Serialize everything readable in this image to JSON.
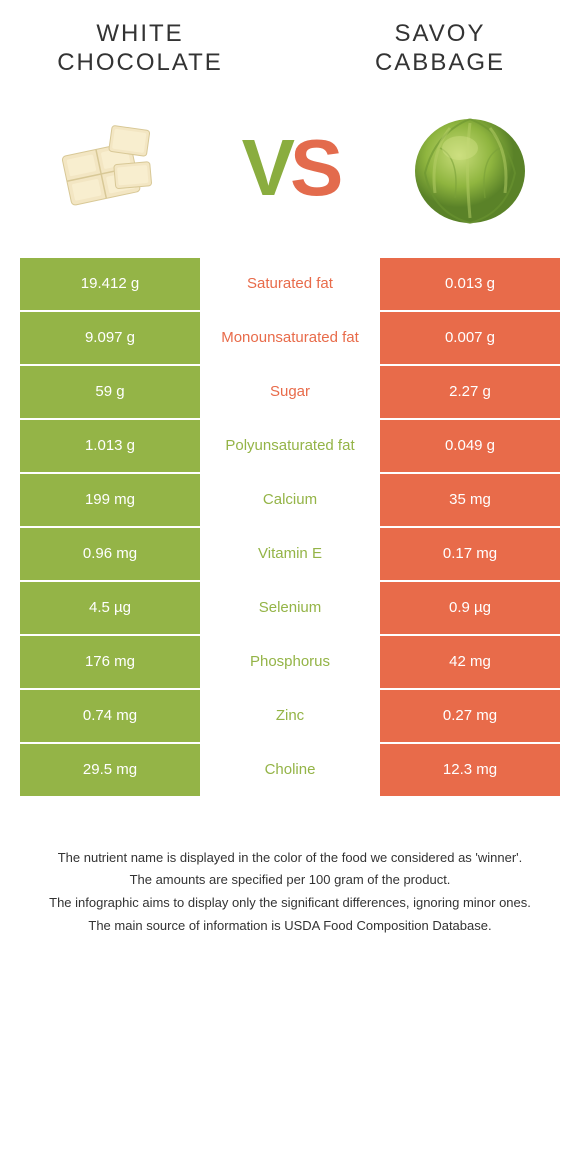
{
  "header": {
    "left_title": "WHITE CHOCOLATE",
    "right_title": "SAVOY CABBAGE"
  },
  "vs": {
    "v": "V",
    "s": "S"
  },
  "colors": {
    "green": "#94b447",
    "orange": "#e86b4a",
    "white": "#ffffff",
    "text": "#333333"
  },
  "table": {
    "left_bg": "#94b447",
    "right_bg": "#e86b4a",
    "rows": [
      {
        "left": "19.412 g",
        "label": "Saturated fat",
        "right": "0.013 g",
        "label_color": "#e86b4a"
      },
      {
        "left": "9.097 g",
        "label": "Monounsaturated fat",
        "right": "0.007 g",
        "label_color": "#e86b4a"
      },
      {
        "left": "59 g",
        "label": "Sugar",
        "right": "2.27 g",
        "label_color": "#e86b4a"
      },
      {
        "left": "1.013 g",
        "label": "Polyunsaturated fat",
        "right": "0.049 g",
        "label_color": "#94b447"
      },
      {
        "left": "199 mg",
        "label": "Calcium",
        "right": "35 mg",
        "label_color": "#94b447"
      },
      {
        "left": "0.96 mg",
        "label": "Vitamin E",
        "right": "0.17 mg",
        "label_color": "#94b447"
      },
      {
        "left": "4.5 µg",
        "label": "Selenium",
        "right": "0.9 µg",
        "label_color": "#94b447"
      },
      {
        "left": "176 mg",
        "label": "Phosphorus",
        "right": "42 mg",
        "label_color": "#94b447"
      },
      {
        "left": "0.74 mg",
        "label": "Zinc",
        "right": "0.27 mg",
        "label_color": "#94b447"
      },
      {
        "left": "29.5 mg",
        "label": "Choline",
        "right": "12.3 mg",
        "label_color": "#94b447"
      }
    ]
  },
  "footer": {
    "line1": "The nutrient name is displayed in the color of the food we considered as 'winner'.",
    "line2": "The amounts are specified per 100 gram of the product.",
    "line3": "The infographic aims to display only the significant differences, ignoring minor ones.",
    "line4": "The main source of information is USDA Food Composition Database."
  }
}
